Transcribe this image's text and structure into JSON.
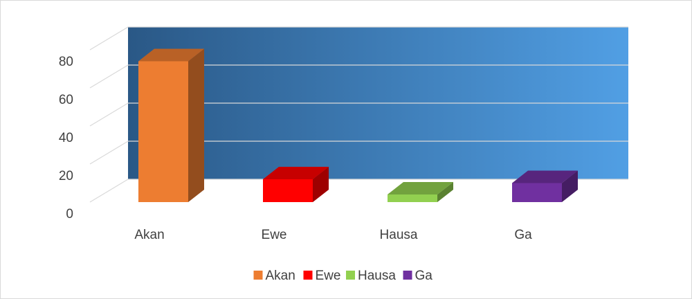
{
  "chart_data": {
    "type": "bar3d",
    "categories": [
      "Akan",
      "Ewe",
      "Hausa",
      "Ga"
    ],
    "values": [
      74,
      12,
      4,
      10
    ],
    "colors": [
      "#ed7d31",
      "#ff0000",
      "#92d050",
      "#7030a0"
    ],
    "ylim": [
      0,
      80
    ],
    "yticks": [
      0,
      20,
      40,
      60,
      80
    ],
    "grid": true,
    "legend": "bottom"
  }
}
